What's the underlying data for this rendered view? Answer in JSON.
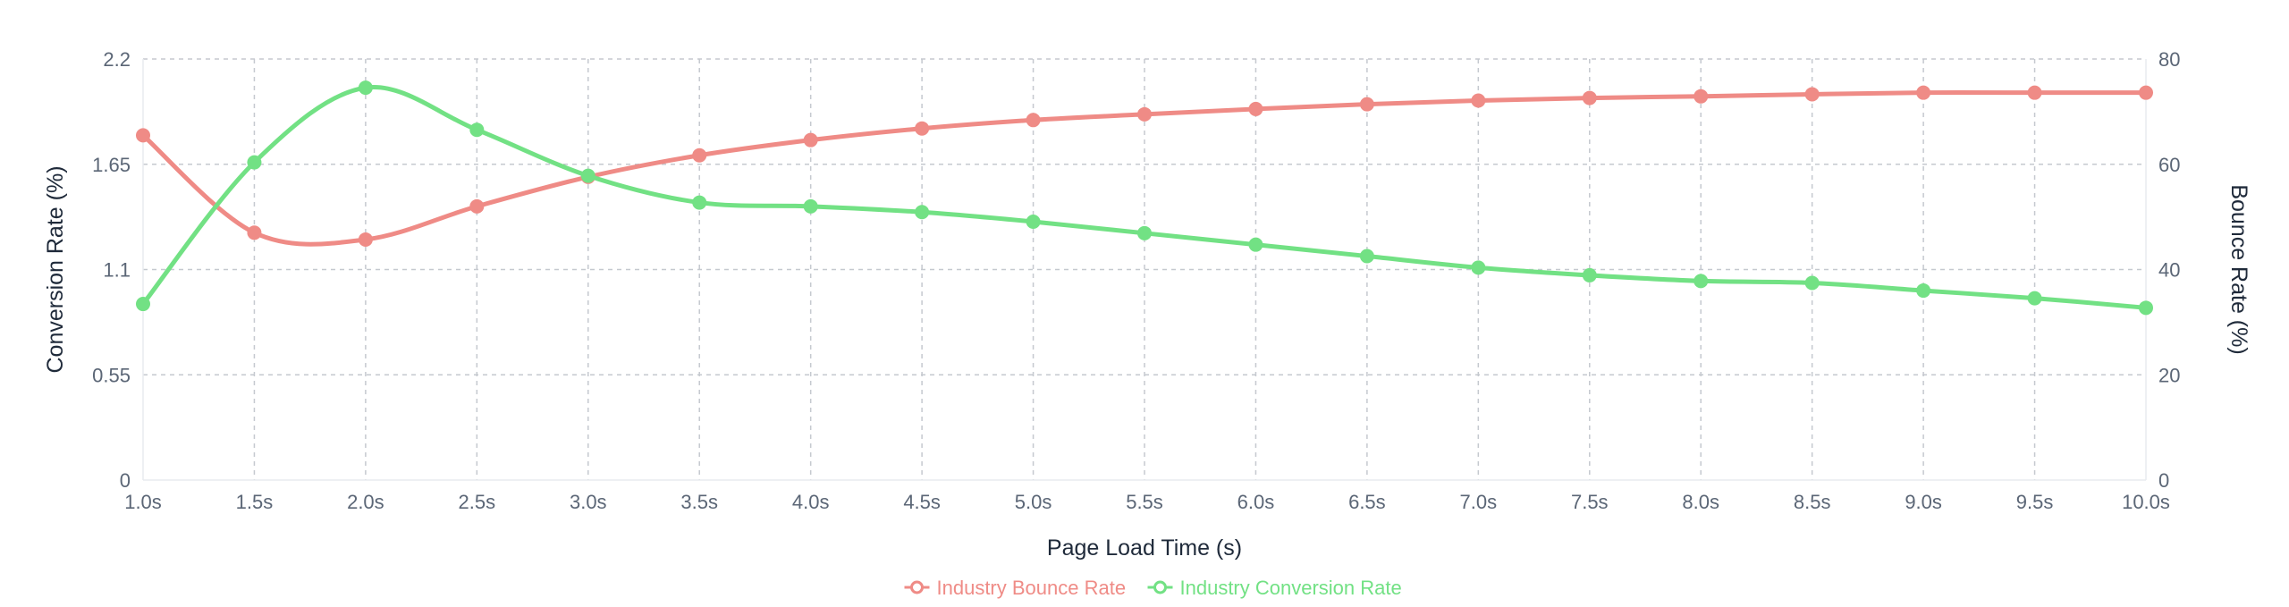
{
  "chart_data": {
    "type": "line",
    "x": [
      "1.0s",
      "1.5s",
      "2.0s",
      "2.5s",
      "3.0s",
      "3.5s",
      "4.0s",
      "4.5s",
      "5.0s",
      "5.5s",
      "6.0s",
      "6.5s",
      "7.0s",
      "7.5s",
      "8.0s",
      "8.5s",
      "9.0s",
      "9.5s",
      "10.0s"
    ],
    "xlabel": "Page Load Time (s)",
    "ylabel_left": "Conversion Rate (%)",
    "ylabel_right": "Bounce Rate (%)",
    "ylim_left": [
      0,
      2.2
    ],
    "yticks_left": [
      "0",
      "0.55",
      "1.1",
      "1.65",
      "2.2"
    ],
    "ylim_right": [
      0,
      80
    ],
    "yticks_right": [
      "0",
      "20",
      "40",
      "60",
      "80"
    ],
    "grid": true,
    "legend_position": "bottom-center",
    "series": [
      {
        "name": "Industry Bounce Rate",
        "axis": "right",
        "color": "#ef8b86",
        "values": [
          65.5,
          47.0,
          45.7,
          52.0,
          57.6,
          61.7,
          64.6,
          66.8,
          68.4,
          69.5,
          70.5,
          71.4,
          72.1,
          72.6,
          72.9,
          73.3,
          73.6,
          73.6,
          73.6
        ]
      },
      {
        "name": "Industry Conversion Rate",
        "axis": "left",
        "color": "#72e184",
        "values": [
          0.92,
          1.66,
          2.05,
          1.83,
          1.59,
          1.45,
          1.43,
          1.4,
          1.35,
          1.29,
          1.23,
          1.17,
          1.11,
          1.07,
          1.04,
          1.03,
          0.99,
          0.95,
          0.9
        ]
      }
    ]
  }
}
